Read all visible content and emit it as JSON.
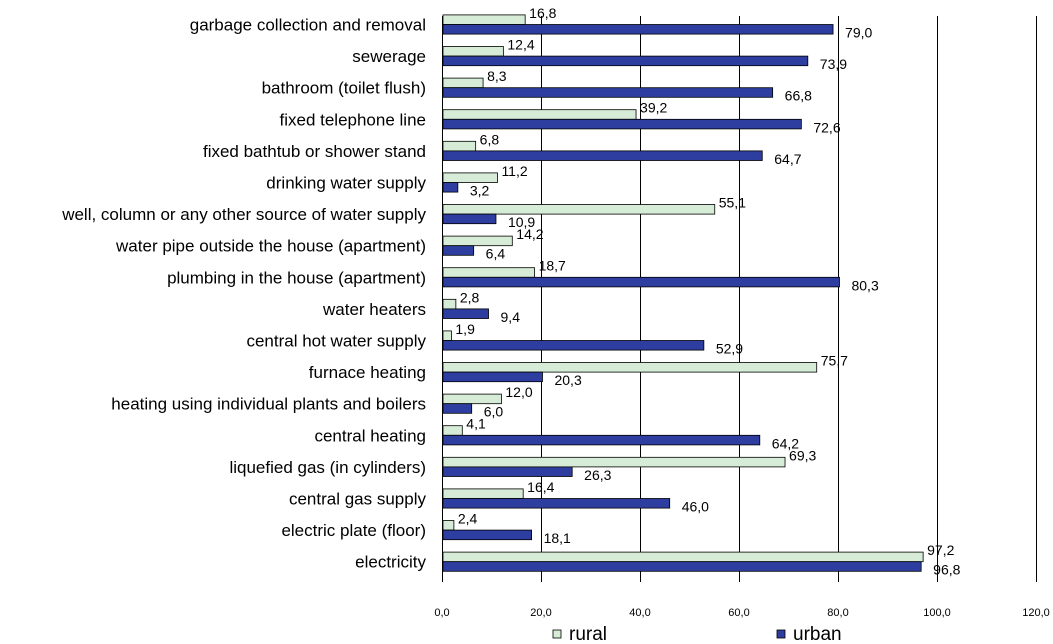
{
  "chart_data": {
    "type": "bar",
    "orientation": "horizontal",
    "categories": [
      "garbage  collection and removal",
      "sewerage",
      "bathroom (toilet flush)",
      "fixed telephone line",
      "fixed bathtub or shower stand",
      "drinking water supply",
      "well, column or any other source of water supply",
      "water pipe outside the house (apartment)",
      "plumbing in the house (apartment)",
      "water heaters",
      "central hot water supply",
      "furnace heating",
      "heating using individual plants and boilers",
      "central heating",
      "liquefied gas (in cylinders)",
      "central gas supply",
      "electric plate (floor)",
      "electricity"
    ],
    "series": [
      {
        "name": "rural",
        "color": "#d6ecd6",
        "values": [
          16.8,
          12.4,
          8.3,
          39.2,
          6.8,
          11.2,
          55.1,
          14.2,
          18.7,
          2.8,
          1.9,
          75.7,
          12.0,
          4.1,
          69.3,
          16.4,
          2.4,
          97.2
        ],
        "labels": [
          "16,8",
          "12,4",
          "8,3",
          "39,2",
          "6,8",
          "11,2",
          "55,1",
          "14,2",
          "18,7",
          "2,8",
          "1,9",
          "75,7",
          "12,0",
          "4,1",
          "69,3",
          "16,4",
          "2,4",
          "97,2"
        ]
      },
      {
        "name": "urban",
        "color": "#2e3ea0",
        "values": [
          79.0,
          73.9,
          66.8,
          72.6,
          64.7,
          3.2,
          10.9,
          6.4,
          80.3,
          9.4,
          52.9,
          20.3,
          6.0,
          64.2,
          26.3,
          46.0,
          18.1,
          96.8
        ],
        "labels": [
          "79,0",
          "73,9",
          "66,8",
          "72,6",
          "64,7",
          "3,2",
          "10,9",
          "6,4",
          "80,3",
          "9,4",
          "52,9",
          "20,3",
          "6,0",
          "64,2",
          "26,3",
          "46,0",
          "18,1",
          "96,8"
        ]
      }
    ],
    "xlim": [
      0,
      120
    ],
    "x_ticks": [
      0,
      20,
      40,
      60,
      80,
      100,
      120
    ],
    "x_tick_labels": [
      "0,0",
      "20,0",
      "40,0",
      "60,0",
      "80,0",
      "100,0",
      "120,0"
    ],
    "grid": "vertical",
    "legend": "bottom"
  }
}
